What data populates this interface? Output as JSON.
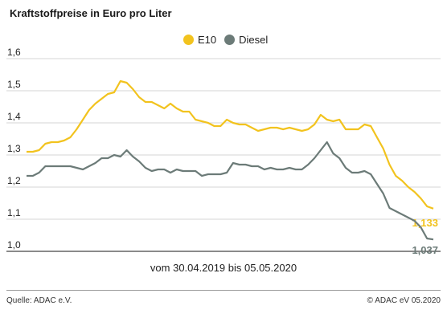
{
  "title": "Kraftstoffpreise in Euro pro Liter",
  "subtitle": "vom 30.04.2019 bis 05.05.2020",
  "source": "Quelle: ADAC e.V.",
  "copyright": "© ADAC eV 05.2020",
  "colors": {
    "E10": "#f2c31e",
    "Diesel": "#6c7b78",
    "grid": "#c8c8c8"
  },
  "chart_data": {
    "type": "line",
    "title": "Kraftstoffpreise in Euro pro Liter",
    "xlabel": "vom 30.04.2019 bis 05.05.2020",
    "ylabel": "",
    "ylim": [
      1.0,
      1.6
    ],
    "yticks": [
      "1,0",
      "1,1",
      "1,2",
      "1,3",
      "1,4",
      "1,5",
      "1,6"
    ],
    "ytick_values": [
      1.0,
      1.1,
      1.2,
      1.3,
      1.4,
      1.5,
      1.6
    ],
    "grid": true,
    "legend": "top-center",
    "series": [
      {
        "name": "E10",
        "end_label": "1,133",
        "values": [
          1.31,
          1.31,
          1.315,
          1.335,
          1.34,
          1.34,
          1.345,
          1.355,
          1.38,
          1.41,
          1.44,
          1.46,
          1.475,
          1.49,
          1.495,
          1.53,
          1.525,
          1.505,
          1.48,
          1.465,
          1.465,
          1.455,
          1.445,
          1.46,
          1.445,
          1.435,
          1.435,
          1.41,
          1.405,
          1.4,
          1.39,
          1.39,
          1.41,
          1.4,
          1.395,
          1.395,
          1.385,
          1.375,
          1.38,
          1.385,
          1.385,
          1.38,
          1.385,
          1.38,
          1.375,
          1.38,
          1.395,
          1.425,
          1.41,
          1.405,
          1.41,
          1.38,
          1.38,
          1.38,
          1.395,
          1.39,
          1.355,
          1.32,
          1.27,
          1.235,
          1.22,
          1.2,
          1.185,
          1.165,
          1.14,
          1.133
        ]
      },
      {
        "name": "Diesel",
        "end_label": "1,037",
        "values": [
          1.235,
          1.235,
          1.245,
          1.265,
          1.265,
          1.265,
          1.265,
          1.265,
          1.26,
          1.255,
          1.265,
          1.275,
          1.29,
          1.29,
          1.3,
          1.295,
          1.315,
          1.295,
          1.28,
          1.26,
          1.25,
          1.255,
          1.255,
          1.245,
          1.255,
          1.25,
          1.25,
          1.25,
          1.235,
          1.24,
          1.24,
          1.24,
          1.245,
          1.275,
          1.27,
          1.27,
          1.265,
          1.265,
          1.255,
          1.26,
          1.255,
          1.255,
          1.26,
          1.255,
          1.255,
          1.27,
          1.29,
          1.315,
          1.34,
          1.305,
          1.29,
          1.26,
          1.245,
          1.245,
          1.25,
          1.24,
          1.21,
          1.18,
          1.135,
          1.125,
          1.115,
          1.105,
          1.095,
          1.075,
          1.04,
          1.037
        ]
      }
    ]
  }
}
